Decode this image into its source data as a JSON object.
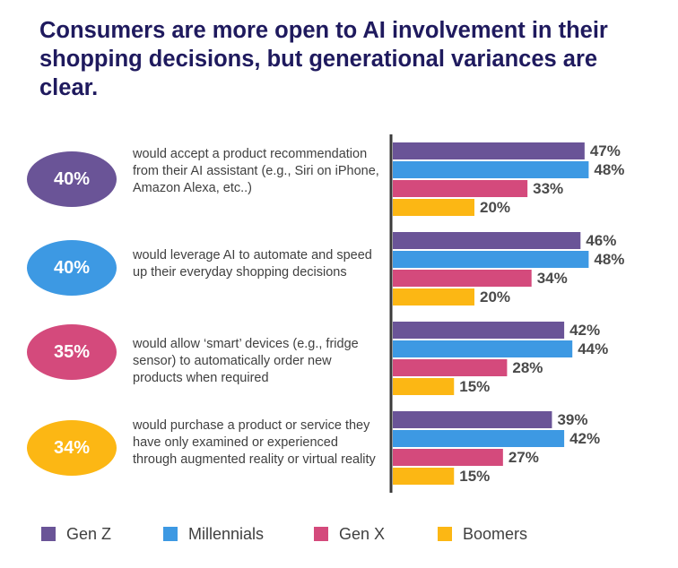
{
  "title": "Consumers are more open to AI involvement in their shopping decisions, but generational variances are clear.",
  "colors": {
    "Gen Z": "#6a5497",
    "Millennials": "#3d99e3",
    "Gen X": "#d44a7c",
    "Boomers": "#fcb714"
  },
  "rows": [
    {
      "pct": "40%",
      "color": "#6a5497",
      "text": "would accept a product recommendation from their AI assistant (e.g., Siri on iPhone, Amazon Alexa, etc..)"
    },
    {
      "pct": "40%",
      "color": "#3d99e3",
      "text": "would leverage AI to automate and speed up their everyday shopping decisions"
    },
    {
      "pct": "35%",
      "color": "#d44a7c",
      "text": "would allow ‘smart’ devices (e.g., fridge sensor) to automatically order new products when required"
    },
    {
      "pct": "34%",
      "color": "#fcb714",
      "text": "would purchase a product or service they have only examined or experienced through augmented reality or virtual reality"
    }
  ],
  "legend": [
    "Gen Z",
    "Millennials",
    "Gen X",
    "Boomers"
  ],
  "chart_data": {
    "type": "bar",
    "orientation": "horizontal",
    "categories": [
      "would accept a product recommendation from their AI assistant (e.g., Siri on iPhone, Amazon Alexa, etc..)",
      "would leverage AI to automate and speed up their everyday shopping decisions",
      "would allow ‘smart’ devices (e.g., fridge sensor) to automatically order new products when required",
      "would purchase a product or service they have only examined or experienced through augmented reality or virtual reality"
    ],
    "series": [
      {
        "name": "Gen Z",
        "values": [
          47,
          46,
          42,
          39
        ]
      },
      {
        "name": "Millennials",
        "values": [
          48,
          48,
          44,
          42
        ]
      },
      {
        "name": "Gen X",
        "values": [
          33,
          34,
          28,
          27
        ]
      },
      {
        "name": "Boomers",
        "values": [
          20,
          20,
          15,
          15
        ]
      }
    ],
    "value_labels": [
      [
        "47%",
        "46%",
        "42%",
        "39%"
      ],
      [
        "48%",
        "48%",
        "44%",
        "42%"
      ],
      [
        "33%",
        "34%",
        "28%",
        "27%"
      ],
      [
        "20%",
        "20%",
        "15%",
        "15%"
      ]
    ],
    "xlim": [
      0,
      50
    ],
    "grid": false,
    "legend_position": "bottom"
  }
}
